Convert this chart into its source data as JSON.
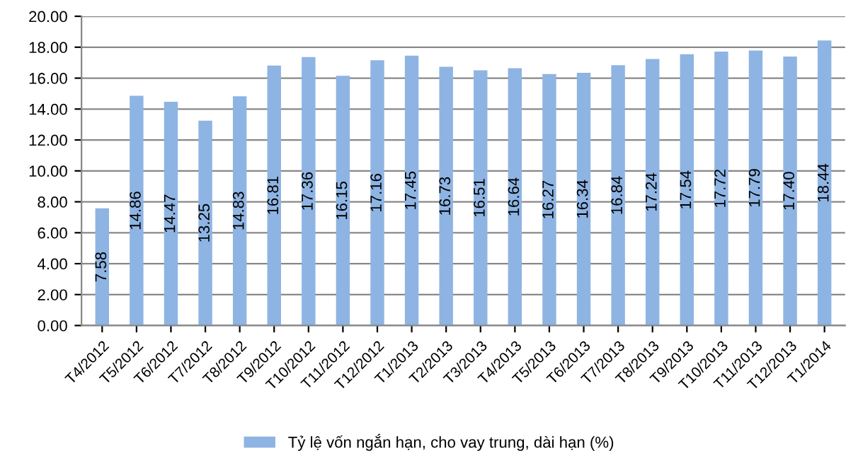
{
  "chart_data": {
    "type": "bar",
    "categories": [
      "T4/2012",
      "T5/2012",
      "T6/2012",
      "T7/2012",
      "T8/2012",
      "T9/2012",
      "T10/2012",
      "T11/2012",
      "T12/2012",
      "T1/2013",
      "T2/2013",
      "T3/2013",
      "T4/2013",
      "T5/2013",
      "T6/2013",
      "T7/2013",
      "T8/2013",
      "T9/2013",
      "T10/2013",
      "T11/2013",
      "T12/2013",
      "T1/2014"
    ],
    "series": [
      {
        "name": "Tỷ lệ vốn ngắn hạn, cho vay trung, dài hạn (%)",
        "color": "#8eb4e3",
        "values": [
          7.58,
          14.86,
          14.47,
          13.25,
          14.83,
          16.81,
          17.36,
          16.15,
          17.16,
          17.45,
          16.73,
          16.51,
          16.64,
          16.27,
          16.34,
          16.84,
          17.24,
          17.54,
          17.72,
          17.79,
          17.4,
          18.44
        ]
      }
    ],
    "value_labels": [
      "7.58",
      "14.86",
      "14.47",
      "13.25",
      "14.83",
      "16.81",
      "17.36",
      "16.15",
      "17.16",
      "17.45",
      "16.73",
      "16.51",
      "16.64",
      "16.27",
      "16.34",
      "16.84",
      "17.24",
      "17.54",
      "17.72",
      "17.79",
      "17.40",
      "18.44"
    ],
    "ylim": [
      0,
      20
    ],
    "yticks": [
      {
        "value": 0,
        "label": "0.00"
      },
      {
        "value": 2,
        "label": "2.00"
      },
      {
        "value": 4,
        "label": "4.00"
      },
      {
        "value": 6,
        "label": "6.00"
      },
      {
        "value": 8,
        "label": "8.00"
      },
      {
        "value": 10,
        "label": "10.00"
      },
      {
        "value": 12,
        "label": "12.00"
      },
      {
        "value": 14,
        "label": "14.00"
      },
      {
        "value": 16,
        "label": "16.00"
      },
      {
        "value": 18,
        "label": "18.00"
      },
      {
        "value": 20,
        "label": "20.00"
      }
    ],
    "grid": "y",
    "legend": "bottom"
  }
}
